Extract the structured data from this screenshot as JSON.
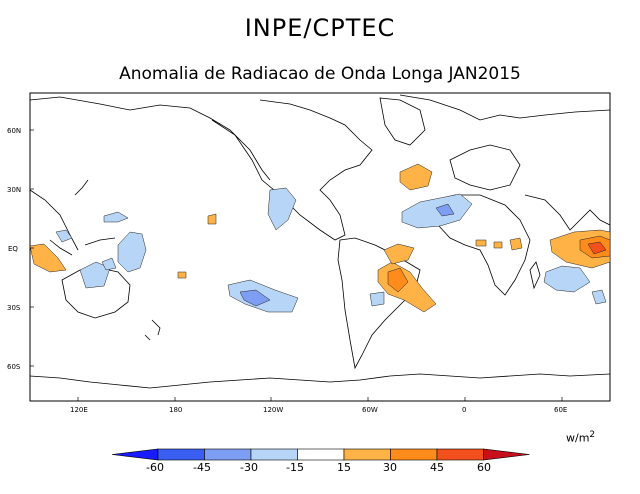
{
  "header": {
    "agency": "INPE/CPTEC",
    "subtitle": "Anomalia de Radiacao de Onda Longa JAN2015"
  },
  "map": {
    "lat_ticks": [
      "60N",
      "30N",
      "EQ",
      "30S",
      "60S"
    ],
    "lon_ticks": [
      "120E",
      "180",
      "120W",
      "60W",
      "0",
      "60E"
    ]
  },
  "colorbar": {
    "units": "w/m",
    "units_exp": "2",
    "labels": [
      "-60",
      "-45",
      "-30",
      "-15",
      "15",
      "30",
      "45",
      "60"
    ],
    "colors": [
      "#1a1aff",
      "#3a5ef2",
      "#7d9ef2",
      "#b7d6f7",
      "#ffffff",
      "#ffb347",
      "#ff8c1a",
      "#f4501e",
      "#c8101c"
    ]
  }
}
